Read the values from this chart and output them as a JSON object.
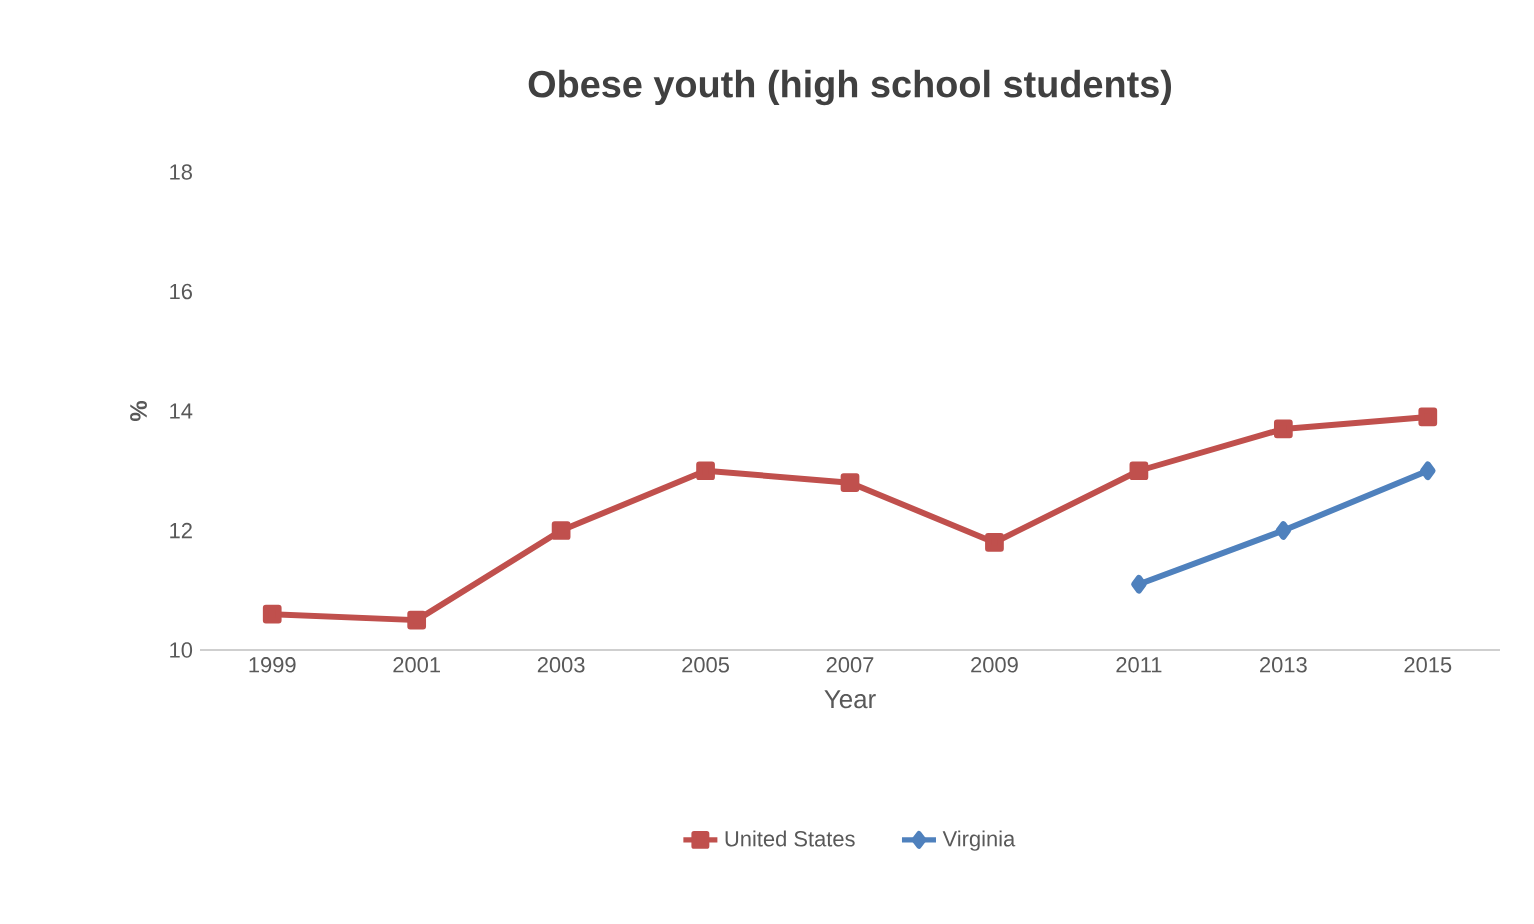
{
  "chart_data": {
    "type": "line",
    "title": "Obese youth (high school students)",
    "xlabel": "Year",
    "ylabel": "%",
    "categories": [
      "1999",
      "2001",
      "2003",
      "2005",
      "2007",
      "2009",
      "2011",
      "2013",
      "2015"
    ],
    "series": [
      {
        "name": "United States",
        "color": "#c0504d",
        "marker": "square",
        "values": [
          10.6,
          10.5,
          12.0,
          13.0,
          12.8,
          11.8,
          13.0,
          13.7,
          13.9
        ]
      },
      {
        "name": "Virginia",
        "color": "#4f81bd",
        "marker": "diamond",
        "values": [
          null,
          null,
          null,
          null,
          null,
          null,
          11.1,
          12.0,
          13.0
        ]
      }
    ],
    "ylim": [
      10,
      18
    ],
    "yticks": [
      10,
      12,
      14,
      16,
      18
    ],
    "legend": "bottom",
    "line_style": "solid"
  }
}
